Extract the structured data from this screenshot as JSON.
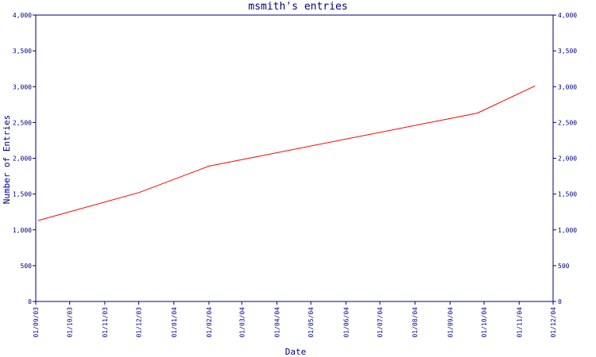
{
  "chart_data": {
    "type": "line",
    "title": "msmith's entries",
    "xlabel": "Date",
    "ylabel": "Number of Entries",
    "ylim": [
      0,
      4000
    ],
    "yticks": [
      0,
      500,
      1000,
      1500,
      2000,
      2500,
      3000,
      3500,
      4000
    ],
    "ytick_labels": [
      "0",
      "500",
      "1,000",
      "1,500",
      "2,000",
      "2,500",
      "3,000",
      "3,500",
      "4,000"
    ],
    "xlim": [
      "2003-09-01",
      "2004-12-01"
    ],
    "xticks": [
      "2003-09-01",
      "2003-10-01",
      "2003-11-01",
      "2003-12-01",
      "2004-01-01",
      "2004-02-01",
      "2004-03-01",
      "2004-04-01",
      "2004-05-01",
      "2004-06-01",
      "2004-07-01",
      "2004-08-01",
      "2004-09-01",
      "2004-10-01",
      "2004-11-01",
      "2004-12-01"
    ],
    "xtick_labels": [
      "01/09/03",
      "01/10/03",
      "01/11/03",
      "01/12/03",
      "01/01/04",
      "01/02/04",
      "01/03/04",
      "01/04/04",
      "01/05/04",
      "01/06/04",
      "01/07/04",
      "01/08/04",
      "01/09/04",
      "01/10/04",
      "01/11/04",
      "01/12/04"
    ],
    "series": [
      {
        "color": "#ff0000",
        "x": [
          "2003-09-03",
          "2003-12-01",
          "2004-02-01",
          "2004-09-25",
          "2004-11-15"
        ],
        "y": [
          1130,
          1520,
          1890,
          2630,
          3010
        ]
      }
    ],
    "grid": false,
    "legend": "none",
    "colors": {
      "axis": "#000080",
      "line": "#ff0000",
      "background": "#ffffff"
    }
  }
}
